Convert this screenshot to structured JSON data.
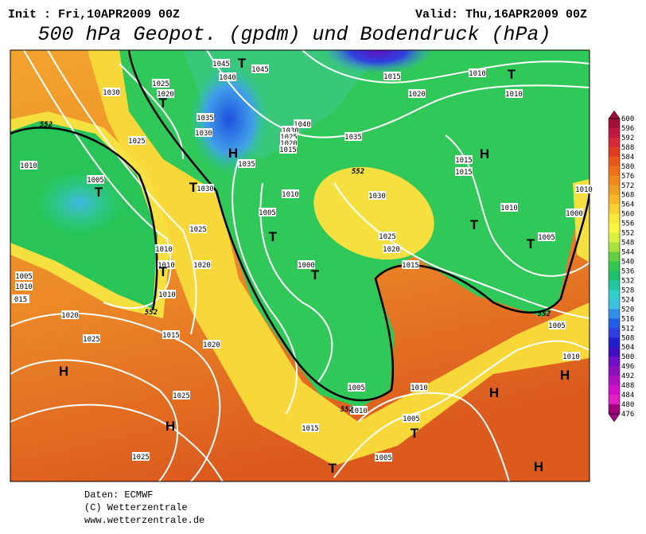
{
  "header": {
    "init": "Init : Fri,10APR2009 00Z",
    "valid": "Valid: Thu,16APR2009 00Z",
    "title": "500 hPa Geopot. (gpdm) und Bodendruck (hPa)"
  },
  "isobar_labels": [
    "1045",
    "1045",
    "1040",
    "1025",
    "1020",
    "1030",
    "1035",
    "1030",
    "1040",
    "1030",
    "1025",
    "1020",
    "1015",
    "1035",
    "1025",
    "1010",
    "1005",
    "1030",
    "1035",
    "1010",
    "1005",
    "1025",
    "1010",
    "1010",
    "1020",
    "1010",
    "1005",
    "1010",
    "015",
    "1020",
    "1025",
    "1015",
    "1020",
    "1025",
    "1025",
    "1000",
    "1030",
    "1025",
    "1020",
    "1015",
    "1015",
    "1020",
    "1010",
    "1010",
    "1015",
    "1015",
    "1010",
    "1005",
    "1000",
    "1010",
    "1005",
    "1010",
    "1005",
    "1010",
    "1010",
    "1015",
    "1005",
    "1005"
  ],
  "contour_labels": [
    "552",
    "552",
    "552",
    "552",
    "552"
  ],
  "pressure_centers": [
    "H",
    "H",
    "H",
    "H",
    "H",
    "H",
    "H",
    "T",
    "T",
    "T",
    "T",
    "T",
    "T",
    "T",
    "T",
    "T",
    "T",
    "T",
    "T"
  ],
  "legend": {
    "labels": [
      600,
      596,
      592,
      588,
      584,
      580,
      576,
      572,
      568,
      564,
      560,
      556,
      552,
      548,
      544,
      540,
      536,
      532,
      528,
      524,
      520,
      516,
      512,
      508,
      504,
      500,
      496,
      492,
      488,
      484,
      480,
      476
    ]
  },
  "footer": {
    "source": "Daten: ECMWF",
    "copyright": "(C) Wetterzentrale",
    "url": "www.wetterzentrale.de"
  }
}
